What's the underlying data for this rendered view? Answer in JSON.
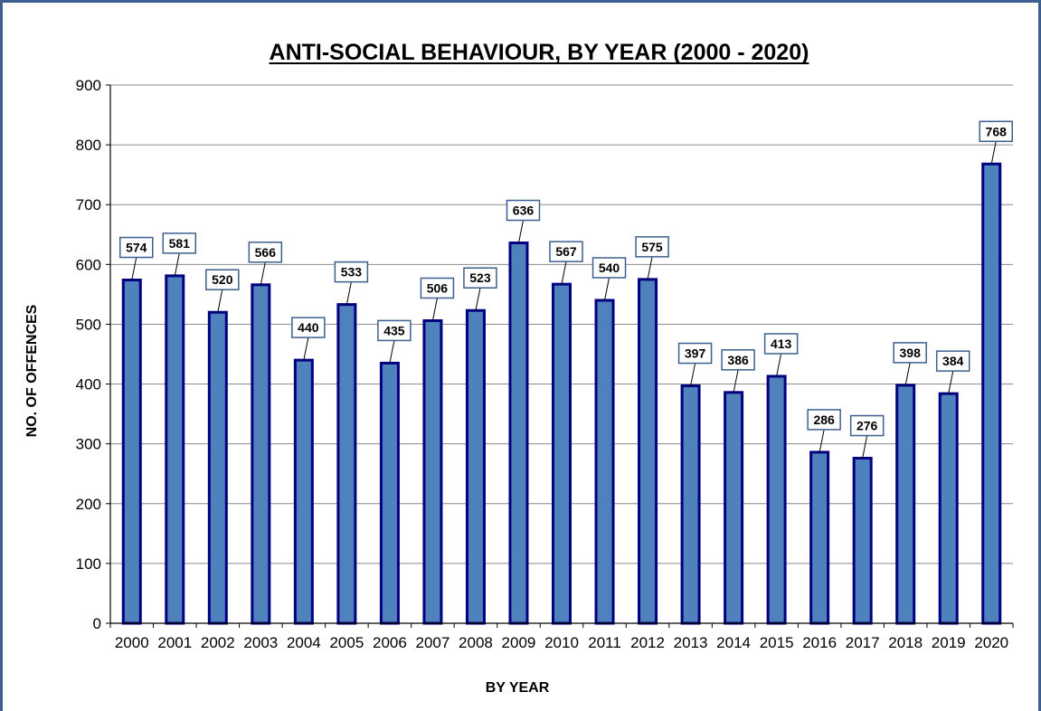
{
  "chart_data": {
    "type": "bar",
    "title": "ANTI-SOCIAL BEHAVIOUR, BY YEAR (2000 - 2020)",
    "xlabel": "BY YEAR",
    "ylabel": "NO. OF OFFENCES",
    "categories": [
      "2000",
      "2001",
      "2002",
      "2003",
      "2004",
      "2005",
      "2006",
      "2007",
      "2008",
      "2009",
      "2010",
      "2011",
      "2012",
      "2013",
      "2014",
      "2015",
      "2016",
      "2017",
      "2018",
      "2019",
      "2020"
    ],
    "values": [
      574,
      581,
      520,
      566,
      440,
      533,
      435,
      506,
      523,
      636,
      567,
      540,
      575,
      397,
      386,
      413,
      286,
      276,
      398,
      384,
      768
    ],
    "ylim": [
      0,
      900
    ],
    "yticks": [
      0,
      100,
      200,
      300,
      400,
      500,
      600,
      700,
      800,
      900
    ],
    "grid": true,
    "legend": "none",
    "colors": {
      "bar_fill": "#4f81bd",
      "bar_stroke": "#000080",
      "label_border": "#3d5f8f",
      "grid": "#8c8c8c",
      "frame": "#3d5f8f"
    }
  }
}
